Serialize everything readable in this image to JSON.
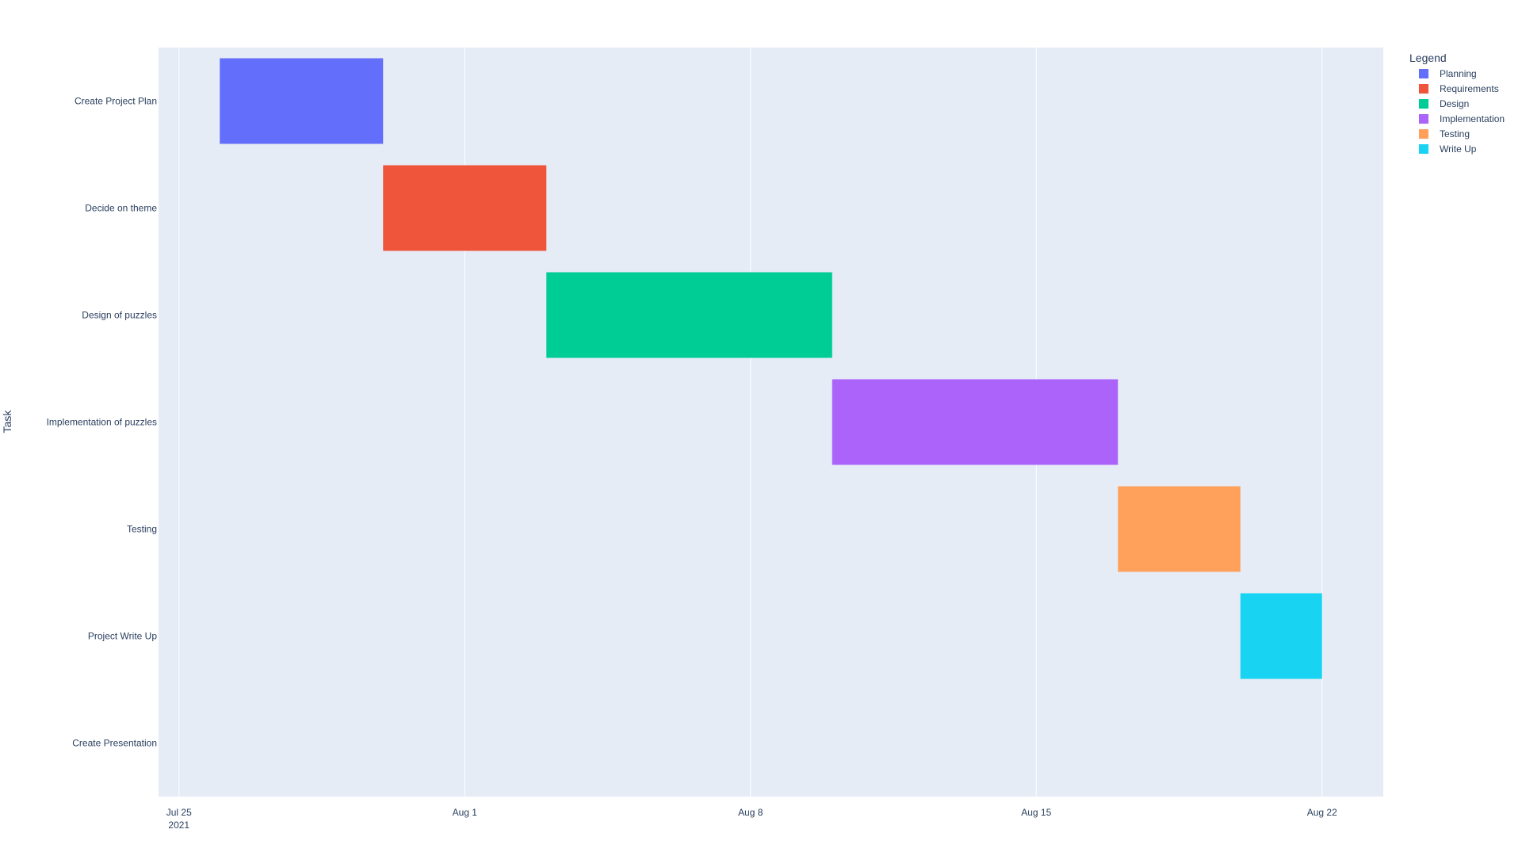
{
  "chart_data": {
    "type": "gantt",
    "ylabel": "Task",
    "legend": {
      "title": "Legend",
      "placement": "right",
      "items": [
        {
          "name": "Planning",
          "color": "#636efa"
        },
        {
          "name": "Requirements",
          "color": "#ef553b"
        },
        {
          "name": "Design",
          "color": "#00cc96"
        },
        {
          "name": "Implementation",
          "color": "#ab63fa"
        },
        {
          "name": "Testing",
          "color": "#ffa15a"
        },
        {
          "name": "Write Up",
          "color": "#19d3f3"
        }
      ]
    },
    "tasks": [
      {
        "label": "Create Project Plan",
        "start": "2021-07-26",
        "end": "2021-07-30",
        "category": "Planning"
      },
      {
        "label": "Decide on theme",
        "start": "2021-07-30",
        "end": "2021-08-03",
        "category": "Requirements"
      },
      {
        "label": "Design of puzzles",
        "start": "2021-08-03",
        "end": "2021-08-10",
        "category": "Design"
      },
      {
        "label": "Implementation of puzzles",
        "start": "2021-08-10",
        "end": "2021-08-17",
        "category": "Implementation"
      },
      {
        "label": "Testing",
        "start": "2021-08-17",
        "end": "2021-08-20",
        "category": "Testing"
      },
      {
        "label": "Project Write Up",
        "start": "2021-08-20",
        "end": "2021-08-22",
        "category": "Write Up"
      },
      {
        "label": "Create Presentation",
        "start": null,
        "end": null,
        "category": null
      }
    ],
    "x_range": [
      "2021-07-24T12:00",
      "2021-08-23T12:00"
    ],
    "x_ticks": [
      {
        "date": "2021-07-25",
        "label": "Jul 25",
        "sublabel": "2021"
      },
      {
        "date": "2021-08-01",
        "label": "Aug 1",
        "sublabel": ""
      },
      {
        "date": "2021-08-08",
        "label": "Aug 8",
        "sublabel": ""
      },
      {
        "date": "2021-08-15",
        "label": "Aug 15",
        "sublabel": ""
      },
      {
        "date": "2021-08-22",
        "label": "Aug 22",
        "sublabel": ""
      }
    ],
    "grid": true,
    "plot_background": "#e5ecf6"
  }
}
